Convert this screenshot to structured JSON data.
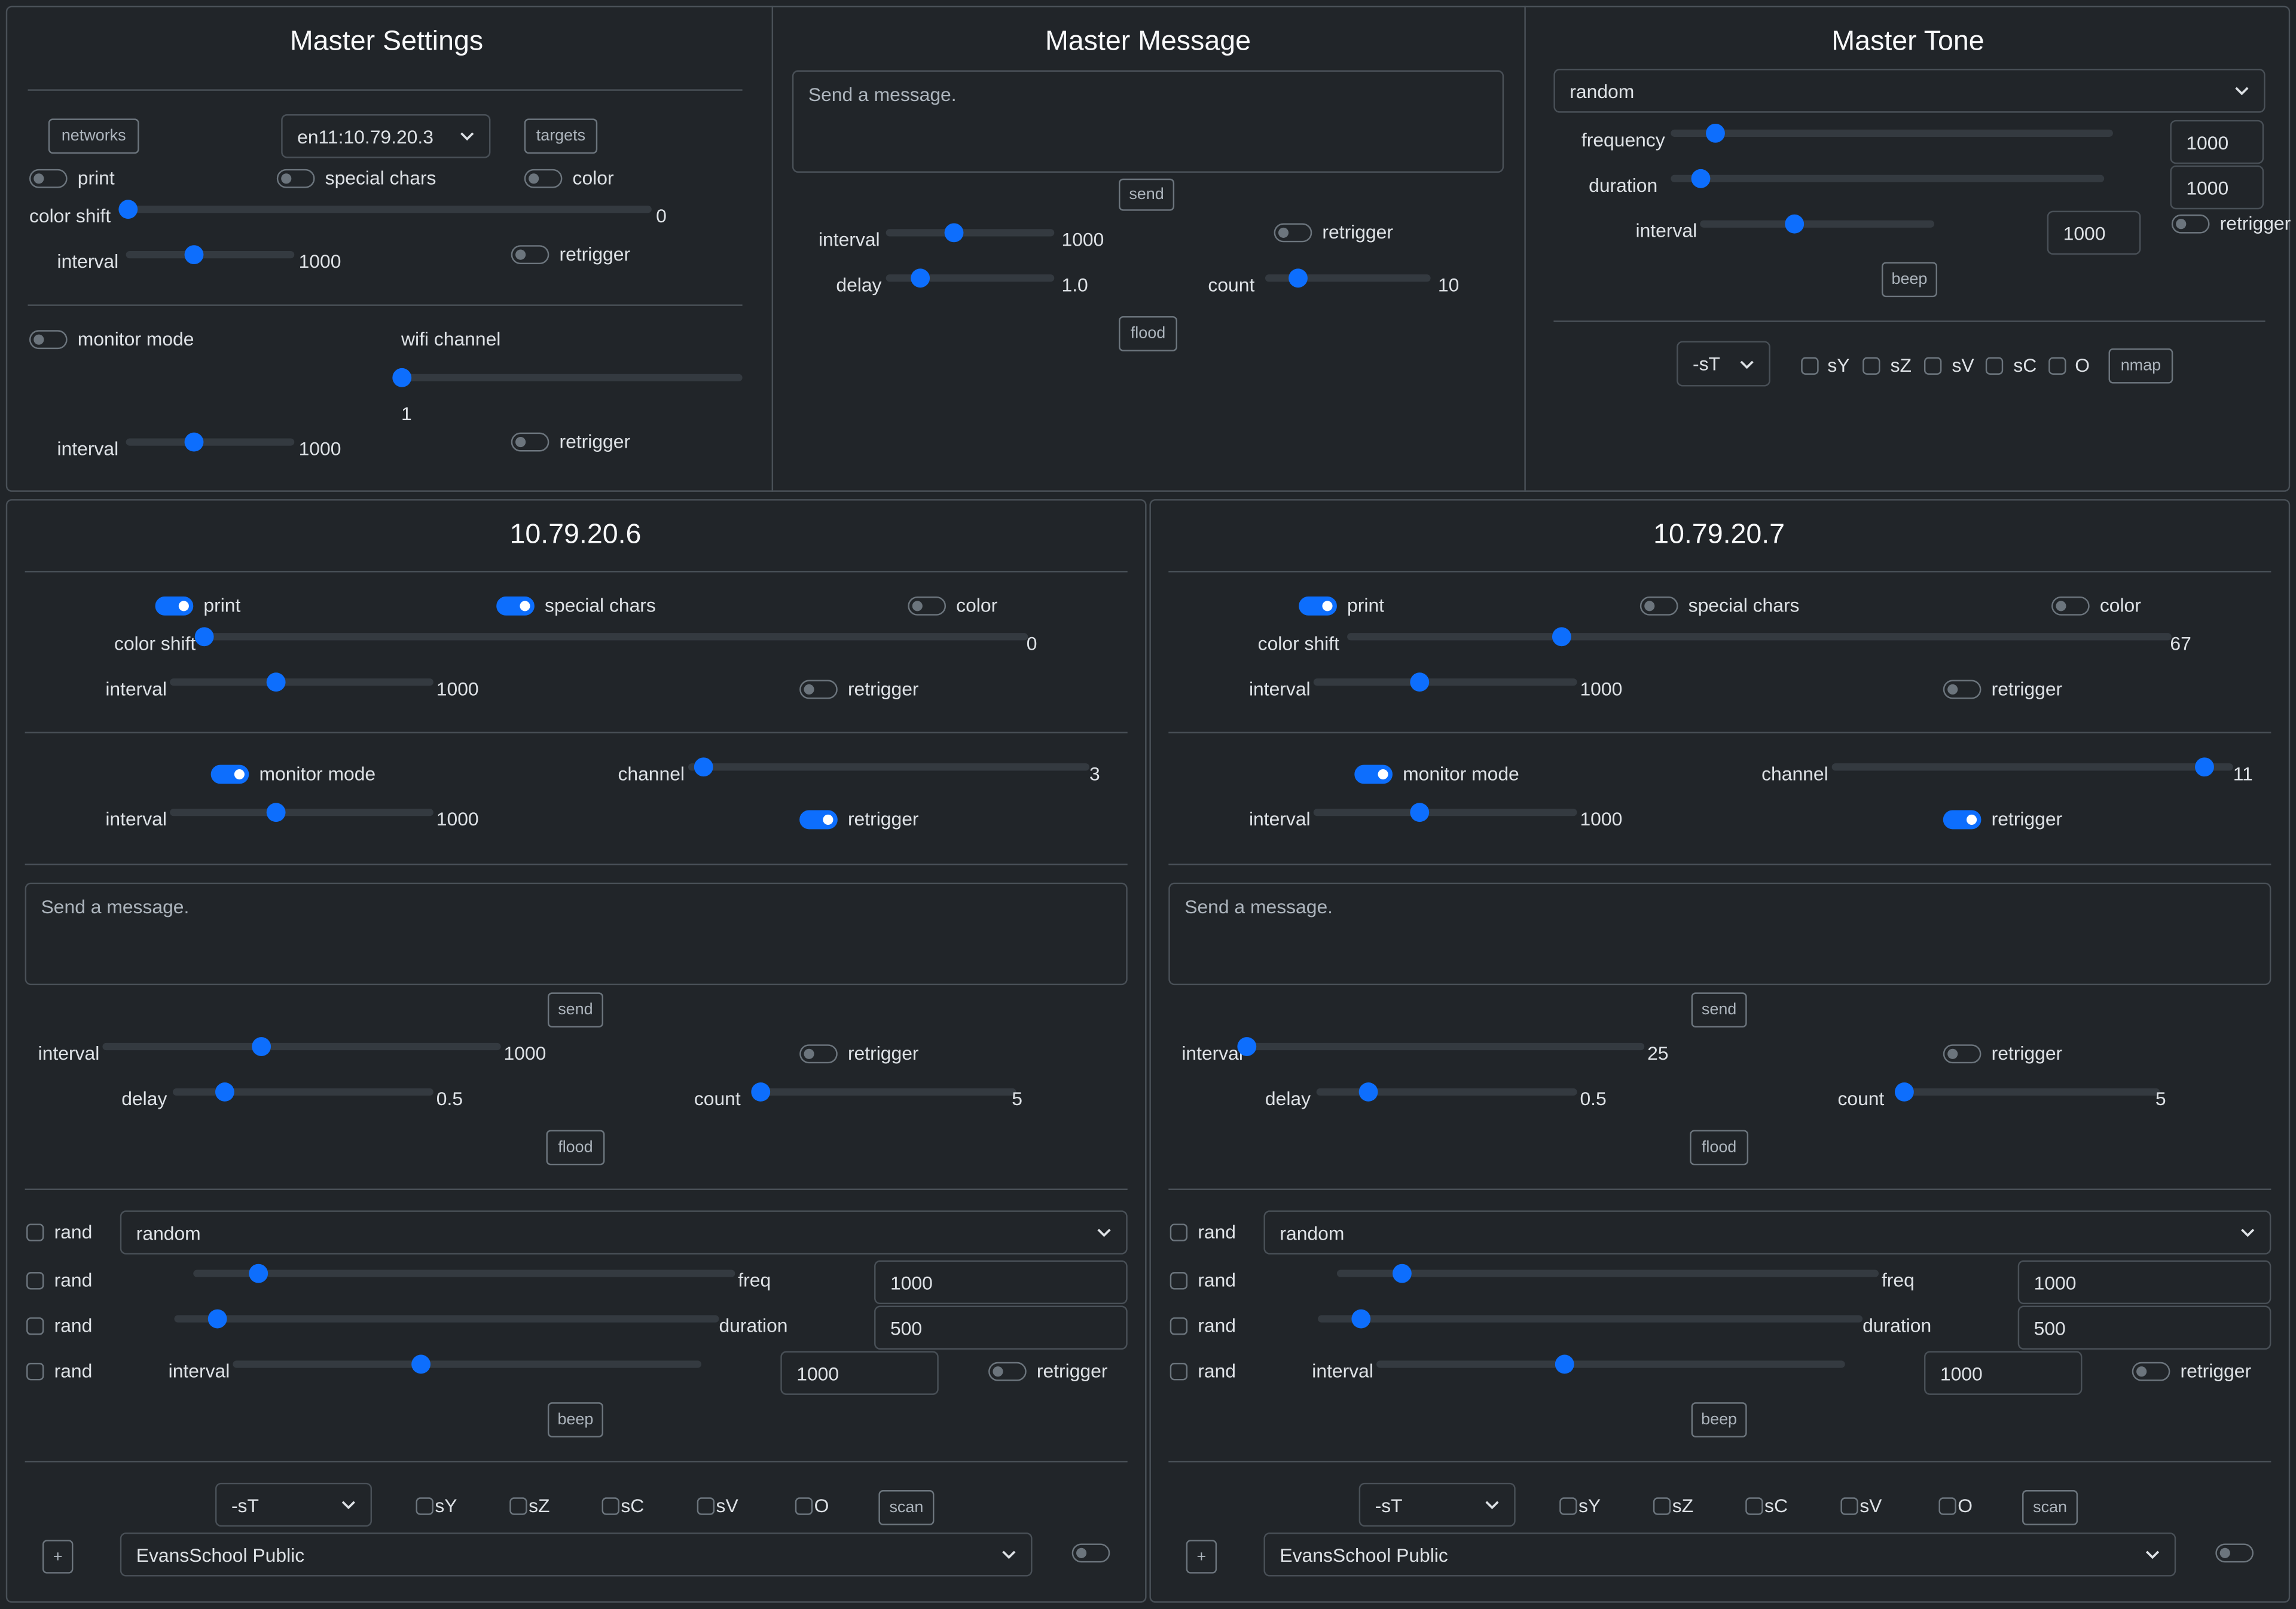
{
  "master_settings": {
    "title": "Master Settings",
    "networks": "networks",
    "network": "en11:10.79.20.3",
    "targets": "targets",
    "print": {
      "label": "print",
      "on": false
    },
    "special_chars": {
      "label": "special chars",
      "on": false
    },
    "color": {
      "label": "color",
      "on": false
    },
    "color_shift": {
      "label": "color shift",
      "value": 0
    },
    "interval": {
      "label": "interval",
      "value": 1000
    },
    "retrigger": {
      "label": "retrigger",
      "on": false
    },
    "monitor_mode": {
      "label": "monitor mode",
      "on": false
    },
    "wifi_channel": {
      "label": "wifi channel",
      "value": 1
    },
    "monitor_interval": {
      "label": "interval",
      "value": 1000
    },
    "monitor_retrigger": {
      "label": "retrigger",
      "on": false
    }
  },
  "master_message": {
    "title": "Master Message",
    "message_placeholder": "Send a message.",
    "send": "send",
    "interval": {
      "label": "interval",
      "value": 1000
    },
    "retrigger": {
      "label": "retrigger",
      "on": false
    },
    "delay": {
      "label": "delay",
      "value": "1.0"
    },
    "count": {
      "label": "count",
      "value": 10
    },
    "flood": "flood"
  },
  "master_tone": {
    "title": "Master Tone",
    "waveform": "random",
    "frequency": {
      "label": "frequency",
      "value": 1000
    },
    "duration": {
      "label": "duration",
      "value": 1000
    },
    "interval": {
      "label": "interval",
      "value": 1000
    },
    "retrigger": {
      "label": "retrigger",
      "on": false
    },
    "beep": "beep",
    "scan_type": "-sT",
    "options": [
      "sY",
      "sZ",
      "sV",
      "sC",
      "O"
    ],
    "nmap": "nmap"
  },
  "hosts": [
    {
      "title": "10.79.20.6",
      "print": {
        "label": "print",
        "on": true
      },
      "special_chars": {
        "label": "special chars",
        "on": true
      },
      "color": {
        "label": "color",
        "on": false
      },
      "color_shift": {
        "label": "color shift",
        "value": 0
      },
      "interval": {
        "label": "interval",
        "value": 1000
      },
      "retrigger": {
        "label": "retrigger",
        "on": false
      },
      "monitor_mode": {
        "label": "monitor mode",
        "on": true
      },
      "channel": {
        "label": "channel",
        "value": 3
      },
      "monitor_interval": {
        "label": "interval",
        "value": 1000
      },
      "monitor_retrigger": {
        "label": "retrigger",
        "on": true
      },
      "message_placeholder": "Send a message.",
      "send": "send",
      "message_interval": {
        "label": "interval",
        "value": 1000
      },
      "message_retrigger": {
        "label": "retrigger",
        "on": false
      },
      "delay": {
        "label": "delay",
        "value": 0.5
      },
      "count": {
        "label": "count",
        "value": 5
      },
      "flood": "flood",
      "rand_labels": [
        "rand",
        "rand",
        "rand",
        "rand"
      ],
      "waveform": "random",
      "freq": {
        "label": "freq",
        "value": 1000
      },
      "duration": {
        "label": "duration",
        "value": 500
      },
      "tone_interval": {
        "label": "interval",
        "value": 1000
      },
      "tone_retrigger": {
        "label": "retrigger",
        "on": false
      },
      "beep": "beep",
      "scan_type": "-sT",
      "options": [
        "sY",
        "sZ",
        "sC",
        "sV",
        "O"
      ],
      "scan": "scan",
      "add": "+",
      "network": "EvansSchool Public",
      "network_on": false
    },
    {
      "title": "10.79.20.7",
      "print": {
        "label": "print",
        "on": true
      },
      "special_chars": {
        "label": "special chars",
        "on": false
      },
      "color": {
        "label": "color",
        "on": false
      },
      "color_shift": {
        "label": "color shift",
        "value": 67
      },
      "interval": {
        "label": "interval",
        "value": 1000
      },
      "retrigger": {
        "label": "retrigger",
        "on": false
      },
      "monitor_mode": {
        "label": "monitor mode",
        "on": true
      },
      "channel": {
        "label": "channel",
        "value": 11
      },
      "monitor_interval": {
        "label": "interval",
        "value": 1000
      },
      "monitor_retrigger": {
        "label": "retrigger",
        "on": true
      },
      "message_placeholder": "Send a message.",
      "send": "send",
      "message_interval": {
        "label": "interval",
        "value": 25
      },
      "message_retrigger": {
        "label": "retrigger",
        "on": false
      },
      "delay": {
        "label": "delay",
        "value": 0.5
      },
      "count": {
        "label": "count",
        "value": 5
      },
      "flood": "flood",
      "rand_labels": [
        "rand",
        "rand",
        "rand",
        "rand"
      ],
      "waveform": "random",
      "freq": {
        "label": "freq",
        "value": 1000
      },
      "duration": {
        "label": "duration",
        "value": 500
      },
      "tone_interval": {
        "label": "interval",
        "value": 1000
      },
      "tone_retrigger": {
        "label": "retrigger",
        "on": false
      },
      "beep": "beep",
      "scan_type": "-sT",
      "options": [
        "sY",
        "sZ",
        "sC",
        "sV",
        "O"
      ],
      "scan": "scan",
      "add": "+",
      "network": "EvansSchool Public",
      "network_on": false
    }
  ]
}
